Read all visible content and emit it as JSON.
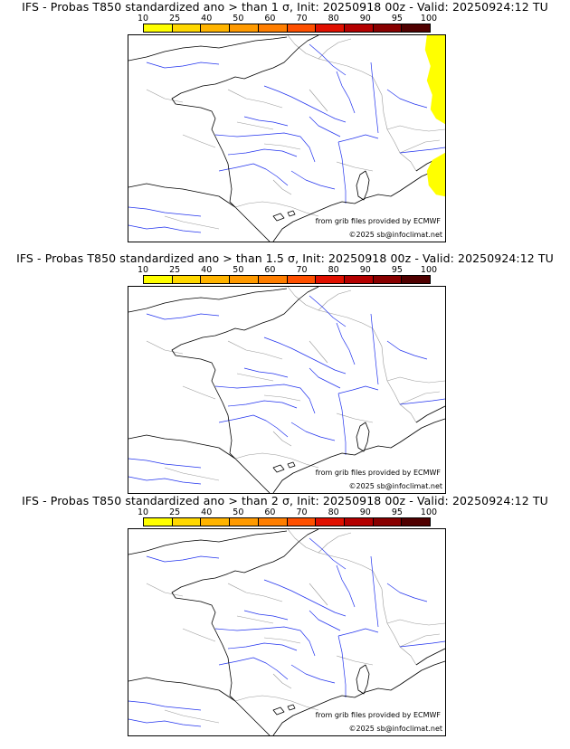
{
  "colorbar": {
    "labels": [
      "10",
      "25",
      "40",
      "50",
      "60",
      "70",
      "80",
      "90",
      "95",
      "100"
    ],
    "colors": [
      "#ffff00",
      "#ffd800",
      "#ffb400",
      "#ff9a00",
      "#ff7e00",
      "#ff5000",
      "#e01000",
      "#b40000",
      "#880000",
      "#500000"
    ]
  },
  "map_colors": {
    "coast": "#000000",
    "rivers": "#2233ee",
    "borders": "#9a9a9a",
    "probability_fill": "#ffff00"
  },
  "panels": [
    {
      "title": "IFS - Probas T850  standardized ano > than 1 σ, Init: 20250918 00z - Valid: 20250924:12 TU",
      "source_credit": "from grib files provided by ECMWF",
      "copyright": "©2025 sb@infoclimat.net",
      "shaded_region": "Alps / eastern edge",
      "shaded_class": "10-25"
    },
    {
      "title": "IFS - Probas T850  standardized ano > than 1.5 σ, Init: 20250918 00z - Valid: 20250924:12 TU",
      "source_credit": "from grib files provided by ECMWF",
      "copyright": "©2025 sb@infoclimat.net",
      "shaded_region": "",
      "shaded_class": ""
    },
    {
      "title": "IFS - Probas T850  standardized ano > than 2 σ, Init: 20250918 00z - Valid: 20250924:12 TU",
      "source_credit": "from grib files provided by ECMWF",
      "copyright": "©2025 sb@infoclimat.net",
      "shaded_region": "",
      "shaded_class": ""
    }
  ]
}
